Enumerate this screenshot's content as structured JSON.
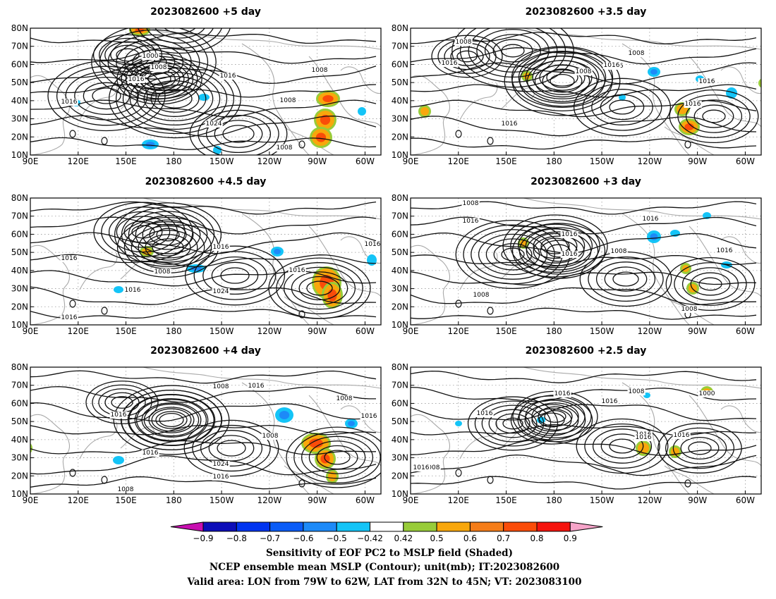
{
  "panels": [
    {
      "title": "2023082600 +5 day",
      "isobar_labels": [
        "1000",
        "1008",
        "1016",
        "1016",
        "1016",
        "1008",
        "1024",
        "1008",
        "1008"
      ],
      "highs": [
        [
          183,
          72,
          -8,
          16,
          7
        ],
        [
          138,
          38,
          -5,
          16,
          9
        ],
        [
          212,
          -8,
          -6,
          14,
          13
        ],
        [
          175,
          48,
          -7,
          18,
          13
        ]
      ],
      "lows": [
        [
          205,
          100,
          8,
          24,
          11
        ],
        [
          108,
          96,
          6,
          20,
          14
        ],
        [
          295,
          150,
          5,
          22,
          13
        ]
      ],
      "hot": [
        [
          422,
          100,
          14,
          9
        ],
        [
          418,
          130,
          13,
          13
        ],
        [
          412,
          155,
          13,
          12
        ],
        [
          155,
          3,
          12,
          5
        ]
      ],
      "cold": [
        [
          170,
          165,
          12,
          7
        ],
        [
          246,
          98,
          8,
          5
        ],
        [
          470,
          118,
          6,
          6
        ],
        [
          265,
          173,
          6,
          6
        ],
        [
          65,
          106,
          6,
          5
        ]
      ]
    },
    {
      "title": "2023082600 +3.5 day",
      "isobar_labels": [
        "1008",
        "1008",
        "1016",
        "1016",
        "1008",
        "1016",
        "1016",
        "1016",
        "1016"
      ],
      "highs": [
        [
          215,
          75,
          -7,
          17,
          12
        ],
        [
          145,
          32,
          -7,
          16,
          13
        ],
        [
          80,
          40,
          -5,
          14,
          10
        ]
      ],
      "lows": [
        [
          215,
          70,
          6,
          22,
          11
        ],
        [
          300,
          112,
          5,
          18,
          14
        ],
        [
          430,
          125,
          5,
          16,
          13
        ]
      ],
      "hot": [
        [
          385,
          115,
          8,
          7
        ],
        [
          395,
          140,
          12,
          9
        ],
        [
          20,
          118,
          6,
          6
        ],
        [
          165,
          68,
          5,
          5
        ],
        [
          500,
          78,
          4,
          4
        ]
      ],
      "cold": [
        [
          345,
          62,
          9,
          7
        ],
        [
          455,
          92,
          8,
          8
        ],
        [
          410,
          72,
          6,
          5
        ],
        [
          300,
          98,
          5,
          5
        ]
      ]
    },
    {
      "title": "2023082600 +4.5 day",
      "isobar_labels": [
        "1016",
        "1016",
        "1008",
        "1016",
        "1024",
        "1016",
        "1016",
        "1016"
      ],
      "highs": [
        [
          195,
          52,
          -7,
          16,
          11
        ],
        [
          160,
          48,
          -6,
          16,
          12
        ]
      ],
      "lows": [
        [
          195,
          70,
          6,
          22,
          11
        ],
        [
          290,
          110,
          5,
          20,
          14
        ],
        [
          410,
          128,
          6,
          18,
          12
        ]
      ],
      "hot": [
        [
          420,
          120,
          18,
          20
        ],
        [
          428,
          138,
          12,
          16
        ],
        [
          165,
          76,
          7,
          5
        ]
      ],
      "cold": [
        [
          235,
          100,
          14,
          6
        ],
        [
          484,
          88,
          7,
          8
        ],
        [
          350,
          76,
          9,
          7
        ],
        [
          125,
          130,
          7,
          5
        ]
      ]
    },
    {
      "title": "2023082600 +3 day",
      "isobar_labels": [
        "1008",
        "1016",
        "1016",
        "1016",
        "1008",
        "1016",
        "1008",
        "1016",
        "1008"
      ],
      "highs": [
        [
          210,
          75,
          -6,
          16,
          11
        ],
        [
          145,
          80,
          -7,
          16,
          12
        ]
      ],
      "lows": [
        [
          205,
          68,
          6,
          20,
          12
        ],
        [
          305,
          115,
          5,
          18,
          13
        ],
        [
          425,
          122,
          5,
          16,
          13
        ]
      ],
      "hot": [
        [
          400,
          128,
          6,
          6
        ],
        [
          390,
          100,
          5,
          5
        ],
        [
          160,
          64,
          5,
          5
        ]
      ],
      "cold": [
        [
          345,
          55,
          10,
          9
        ],
        [
          375,
          50,
          7,
          5
        ],
        [
          448,
          95,
          8,
          5
        ],
        [
          420,
          25,
          6,
          5
        ]
      ]
    },
    {
      "title": "2023082600 +4 day",
      "isobar_labels": [
        "1008",
        "1016",
        "1016",
        "1016",
        "1024",
        "1016",
        "1008",
        "1008",
        "1016",
        "1008"
      ],
      "highs": [
        [
          200,
          75,
          -7,
          17,
          12
        ],
        [
          130,
          50,
          -5,
          15,
          10
        ]
      ],
      "lows": [
        [
          200,
          75,
          6,
          22,
          11
        ],
        [
          285,
          115,
          5,
          20,
          13
        ],
        [
          435,
          128,
          6,
          18,
          12
        ]
      ],
      "hot": [
        [
          405,
          108,
          18,
          12
        ],
        [
          418,
          130,
          12,
          12
        ],
        [
          428,
          155,
          6,
          7
        ],
        [
          -5,
          115,
          5,
          6
        ]
      ],
      "cold": [
        [
          360,
          68,
          13,
          11
        ],
        [
          455,
          80,
          9,
          7
        ],
        [
          125,
          132,
          8,
          6
        ]
      ]
    },
    {
      "title": "2023082600 +2.5 day",
      "isobar_labels": [
        "1016",
        "1016",
        "1016",
        "1008",
        "1016",
        "1016",
        "1016",
        "1000",
        "1008",
        "1016"
      ],
      "highs": [
        [
          205,
          70,
          -6,
          15,
          10
        ],
        [
          145,
          80,
          -6,
          14,
          11
        ]
      ],
      "lows": [
        [
          200,
          75,
          5,
          18,
          11
        ],
        [
          300,
          112,
          5,
          18,
          13
        ],
        [
          410,
          115,
          5,
          16,
          12
        ]
      ],
      "hot": [
        [
          330,
          115,
          8,
          8
        ],
        [
          375,
          120,
          6,
          6
        ],
        [
          420,
          35,
          6,
          5
        ]
      ],
      "cold": [
        [
          185,
          75,
          6,
          5
        ],
        [
          335,
          40,
          5,
          4
        ],
        [
          68,
          80,
          5,
          4
        ]
      ]
    }
  ],
  "axes": {
    "lat_ticks": [
      "80N",
      "70N",
      "60N",
      "50N",
      "40N",
      "30N",
      "20N",
      "10N"
    ],
    "lon_ticks": [
      "90E",
      "120E",
      "150E",
      "180",
      "150W",
      "120W",
      "90W",
      "60W"
    ]
  },
  "colorbar": {
    "labels": [
      "−0.9",
      "−0.8",
      "−0.7",
      "−0.6",
      "−0.5",
      "−0.42",
      "0.42",
      "0.5",
      "0.6",
      "0.7",
      "0.8",
      "0.9"
    ],
    "colors": [
      "#0c0db8",
      "#0034f0",
      "#0a5cf7",
      "#1d8af8",
      "#14c4f7",
      "#ffffff",
      "#98cc39",
      "#f8a70c",
      "#f57d19",
      "#fa4c09",
      "#f5130d"
    ],
    "left_arrow_color": "#c80eb0",
    "right_arrow_color": "#f6a4c9"
  },
  "caption": {
    "line1": "Sensitivity of EOF PC2 to MSLP field (Shaded)",
    "line2": "NCEP ensemble mean MSLP (Contour); unit(mb); IT:2023082600",
    "line3": "Valid area: LON from 79W to 62W, LAT from 32N to 45N; VT: 2023083100"
  }
}
